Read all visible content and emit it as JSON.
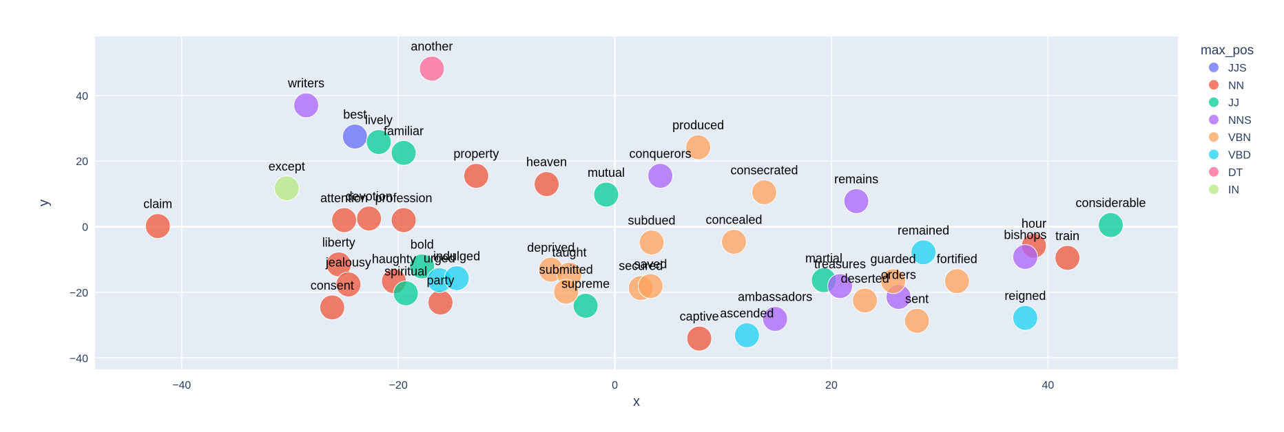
{
  "chart_data": {
    "type": "scatter",
    "xlabel": "x",
    "ylabel": "y",
    "xlim": [
      -48,
      52
    ],
    "ylim": [
      -43.5,
      58
    ],
    "x_ticks": [
      -40,
      -20,
      0,
      20,
      40
    ],
    "y_ticks": [
      -40,
      -20,
      0,
      20,
      40
    ],
    "grid": true,
    "legend": {
      "title": "max_pos",
      "placement": "right",
      "entries": [
        {
          "name": "JJS",
          "color": "#636efa"
        },
        {
          "name": "NN",
          "color": "#EF553B"
        },
        {
          "name": "JJ",
          "color": "#00cc96"
        },
        {
          "name": "NNS",
          "color": "#ab63fa"
        },
        {
          "name": "VBN",
          "color": "#FFA15A"
        },
        {
          "name": "VBD",
          "color": "#19d3f3"
        },
        {
          "name": "DT",
          "color": "#FF6692"
        },
        {
          "name": "IN",
          "color": "#B6E880"
        }
      ]
    },
    "points": [
      {
        "label": "best",
        "pos": "JJS",
        "x": -24.0,
        "y": 27.5
      },
      {
        "label": "claim",
        "pos": "NN",
        "x": -42.2,
        "y": 0.2
      },
      {
        "label": "attention",
        "pos": "NN",
        "x": -25.0,
        "y": 2.0
      },
      {
        "label": "devotion",
        "pos": "NN",
        "x": -22.7,
        "y": 2.5
      },
      {
        "label": "profession",
        "pos": "NN",
        "x": -19.5,
        "y": 2.0
      },
      {
        "label": "property",
        "pos": "NN",
        "x": -12.8,
        "y": 15.5
      },
      {
        "label": "heaven",
        "pos": "NN",
        "x": -6.3,
        "y": 13.0
      },
      {
        "label": "liberty",
        "pos": "NN",
        "x": -25.5,
        "y": -11.5
      },
      {
        "label": "jealousy",
        "pos": "NN",
        "x": -24.6,
        "y": -17.6
      },
      {
        "label": "consent",
        "pos": "NN",
        "x": -26.1,
        "y": -24.6
      },
      {
        "label": "haughty",
        "pos": "NN",
        "x": -20.4,
        "y": -16.6
      },
      {
        "label": "party",
        "pos": "NN",
        "x": -16.1,
        "y": -23.1
      },
      {
        "label": "captive",
        "pos": "NN",
        "x": 7.8,
        "y": -34.1
      },
      {
        "label": "hour",
        "pos": "NN",
        "x": 38.7,
        "y": -5.8
      },
      {
        "label": "train",
        "pos": "NN",
        "x": 41.8,
        "y": -9.5
      },
      {
        "label": "lively",
        "pos": "JJ",
        "x": -21.8,
        "y": 25.8
      },
      {
        "label": "familiar",
        "pos": "JJ",
        "x": -19.5,
        "y": 22.5
      },
      {
        "label": "mutual",
        "pos": "JJ",
        "x": -0.8,
        "y": 9.8
      },
      {
        "label": "bold",
        "pos": "JJ",
        "x": -17.8,
        "y": -12.1
      },
      {
        "label": "spiritual",
        "pos": "JJ",
        "x": -19.3,
        "y": -20.3
      },
      {
        "label": "supreme",
        "pos": "JJ",
        "x": -2.7,
        "y": -24.1
      },
      {
        "label": "martial",
        "pos": "JJ",
        "x": 19.3,
        "y": -16.3
      },
      {
        "label": "considerable",
        "pos": "JJ",
        "x": 45.8,
        "y": 0.5
      },
      {
        "label": "writers",
        "pos": "NNS",
        "x": -28.5,
        "y": 37.0
      },
      {
        "label": "conquerors",
        "pos": "NNS",
        "x": 4.2,
        "y": 15.5
      },
      {
        "label": "remains",
        "pos": "NNS",
        "x": 22.3,
        "y": 7.8
      },
      {
        "label": "treasures",
        "pos": "NNS",
        "x": 20.8,
        "y": -18.1
      },
      {
        "label": "orders",
        "pos": "NNS",
        "x": 26.2,
        "y": -21.4
      },
      {
        "label": "ambassadors",
        "pos": "NNS",
        "x": 14.8,
        "y": -28.1
      },
      {
        "label": "bishops",
        "pos": "NNS",
        "x": 37.9,
        "y": -9.2
      },
      {
        "label": "produced",
        "pos": "VBN",
        "x": 7.7,
        "y": 24.2
      },
      {
        "label": "consecrated",
        "pos": "VBN",
        "x": 13.8,
        "y": 10.5
      },
      {
        "label": "subdued",
        "pos": "VBN",
        "x": 3.4,
        "y": -4.8
      },
      {
        "label": "concealed",
        "pos": "VBN",
        "x": 11.0,
        "y": -4.6
      },
      {
        "label": "deprived",
        "pos": "VBN",
        "x": -5.9,
        "y": -13.1
      },
      {
        "label": "taught",
        "pos": "VBN",
        "x": -4.2,
        "y": -14.6
      },
      {
        "label": "submitted",
        "pos": "VBN",
        "x": -4.5,
        "y": -19.8
      },
      {
        "label": "secured",
        "pos": "VBN",
        "x": 2.4,
        "y": -18.7
      },
      {
        "label": "saved",
        "pos": "VBN",
        "x": 3.3,
        "y": -18.1
      },
      {
        "label": "deserted",
        "pos": "VBN",
        "x": 23.1,
        "y": -22.5
      },
      {
        "label": "guarded",
        "pos": "VBN",
        "x": 25.7,
        "y": -16.6
      },
      {
        "label": "fortified",
        "pos": "VBN",
        "x": 31.6,
        "y": -16.6
      },
      {
        "label": "sent",
        "pos": "VBN",
        "x": 27.9,
        "y": -28.7
      },
      {
        "label": "urged",
        "pos": "VBD",
        "x": -16.2,
        "y": -16.3
      },
      {
        "label": "indulged",
        "pos": "VBD",
        "x": -14.6,
        "y": -15.7
      },
      {
        "label": "ascended",
        "pos": "VBD",
        "x": 12.2,
        "y": -33.1
      },
      {
        "label": "remained",
        "pos": "VBD",
        "x": 28.5,
        "y": -7.8
      },
      {
        "label": "reigned",
        "pos": "VBD",
        "x": 37.9,
        "y": -27.8
      },
      {
        "label": "another",
        "pos": "DT",
        "x": -16.9,
        "y": 48.2
      },
      {
        "label": "except",
        "pos": "IN",
        "x": -30.3,
        "y": 11.7
      }
    ]
  }
}
